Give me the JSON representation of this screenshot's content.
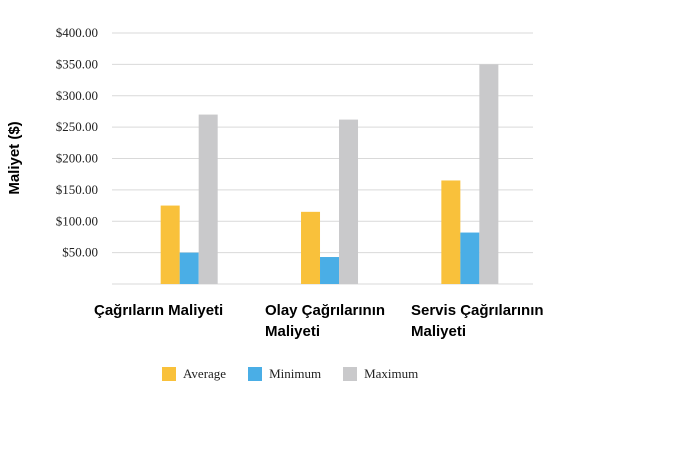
{
  "chart_data": {
    "type": "bar",
    "title": "",
    "ylabel": "Maliyet ($)",
    "xlabel": "",
    "ylim": [
      0,
      400
    ],
    "yticks": [
      50,
      100,
      150,
      200,
      250,
      300,
      350,
      400
    ],
    "ytick_labels": [
      "$50.00",
      "$100.00",
      "$150.00",
      "$200.00",
      "$250.00",
      "$300.00",
      "$350.00",
      "$400.00"
    ],
    "grid": true,
    "legend_position": "bottom",
    "categories": [
      "Çağrıların Maliyeti",
      "Olay Çağrılarının Maliyeti",
      "Servis Çağrılarının Maliyeti"
    ],
    "series": [
      {
        "name": "Average",
        "color": "#F9C13B",
        "values": [
          125,
          115,
          165
        ]
      },
      {
        "name": "Minimum",
        "color": "#4AAEE6",
        "values": [
          50,
          43,
          82
        ]
      },
      {
        "name": "Maximum",
        "color": "#C9C9CB",
        "values": [
          270,
          262,
          350
        ]
      }
    ]
  }
}
